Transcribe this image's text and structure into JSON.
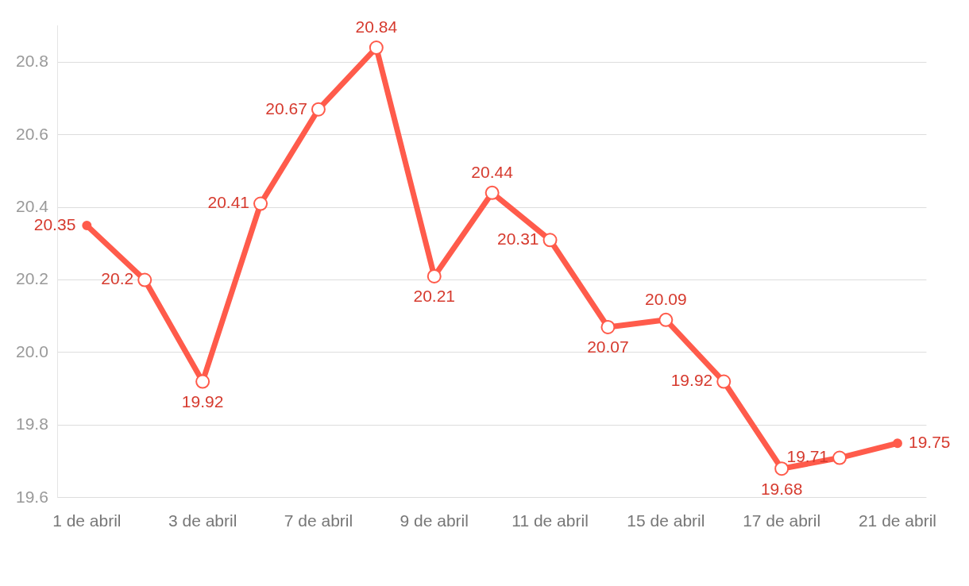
{
  "chart_data": {
    "type": "line",
    "categories": [
      "1 de abril",
      null,
      "3 de abril",
      null,
      "7 de abril",
      null,
      "9 de abril",
      null,
      "11 de abril",
      null,
      "15 de abril",
      null,
      "17 de abril",
      null,
      "21 de abril"
    ],
    "series": [
      {
        "color": "#ff5b4b",
        "values": [
          20.35,
          20.2,
          19.92,
          20.41,
          20.67,
          20.84,
          20.21,
          20.44,
          20.31,
          20.07,
          20.09,
          19.92,
          19.68,
          19.71,
          19.75
        ]
      }
    ],
    "ylim": [
      19.6,
      20.9
    ],
    "yticks": [
      19.6,
      19.8,
      {
        "value": 20,
        "label": "20.0"
      },
      20.2,
      20.4,
      20.6,
      20.8
    ],
    "grid": "y",
    "legend": false,
    "marker": "circle",
    "line_style": "solid",
    "data_labels": true
  }
}
